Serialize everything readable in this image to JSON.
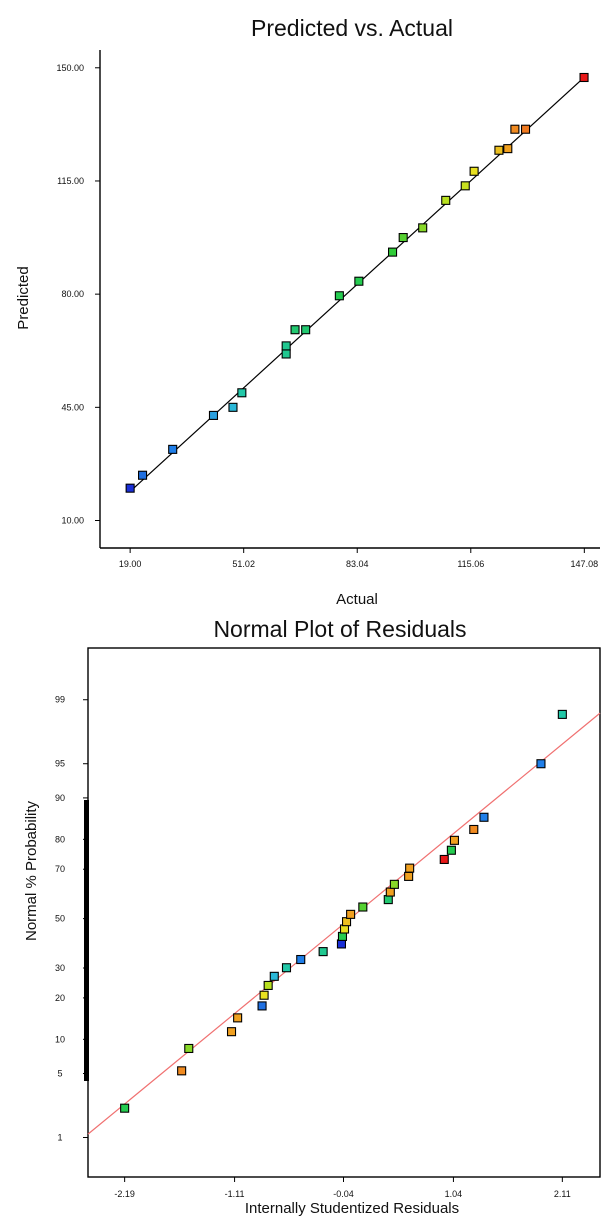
{
  "chart_data": [
    {
      "type": "scatter",
      "title": "Predicted vs. Actual",
      "xlabel": "Actual",
      "ylabel": "Predicted",
      "xlim": [
        10.5,
        151.5
      ],
      "ylim": [
        1.5,
        155.5
      ],
      "x_ticks": [
        19.0,
        51.02,
        83.04,
        115.06,
        147.08
      ],
      "x_tick_labels": [
        "19.00",
        "51.02",
        "83.04",
        "115.06",
        "147.08"
      ],
      "y_ticks": [
        10.0,
        45.0,
        80.0,
        115.0,
        150.0
      ],
      "y_tick_labels": [
        "10.00",
        "45.00",
        "80.00",
        "115.00",
        "150.00"
      ],
      "fit_line": [
        [
          19.0,
          19.0
        ],
        [
          147.0,
          147.0
        ]
      ],
      "points": [
        {
          "x": 19.0,
          "y": 20.0,
          "color": "#1a2fd6"
        },
        {
          "x": 22.5,
          "y": 24.0,
          "color": "#1f6fe0"
        },
        {
          "x": 31.0,
          "y": 32.0,
          "color": "#1f7ee8"
        },
        {
          "x": 42.5,
          "y": 42.5,
          "color": "#2aa0e0"
        },
        {
          "x": 48.0,
          "y": 45.0,
          "color": "#2ab8d8"
        },
        {
          "x": 50.5,
          "y": 49.5,
          "color": "#22c8a8"
        },
        {
          "x": 63.0,
          "y": 61.5,
          "color": "#20c890"
        },
        {
          "x": 63.0,
          "y": 64.0,
          "color": "#20c890"
        },
        {
          "x": 65.5,
          "y": 69.0,
          "color": "#22c870"
        },
        {
          "x": 68.5,
          "y": 69.0,
          "color": "#22c870"
        },
        {
          "x": 78.0,
          "y": 79.5,
          "color": "#25cc50"
        },
        {
          "x": 83.5,
          "y": 84.0,
          "color": "#25cc50"
        },
        {
          "x": 93.0,
          "y": 93.0,
          "color": "#30cc38"
        },
        {
          "x": 96.0,
          "y": 97.5,
          "color": "#55d030"
        },
        {
          "x": 101.5,
          "y": 100.5,
          "color": "#88d828"
        },
        {
          "x": 108.0,
          "y": 109.0,
          "color": "#b8e020"
        },
        {
          "x": 113.5,
          "y": 113.5,
          "color": "#c8e020"
        },
        {
          "x": 116.0,
          "y": 118.0,
          "color": "#e8e020"
        },
        {
          "x": 123.0,
          "y": 124.5,
          "color": "#ecc020"
        },
        {
          "x": 125.5,
          "y": 125.0,
          "color": "#f0a020"
        },
        {
          "x": 127.5,
          "y": 131.0,
          "color": "#f08a20"
        },
        {
          "x": 130.5,
          "y": 131.0,
          "color": "#f07a20"
        },
        {
          "x": 147.0,
          "y": 147.0,
          "color": "#e81818"
        }
      ]
    },
    {
      "type": "scatter",
      "title": "Normal Plot of Residuals",
      "xlabel": "Internally Studentized Residuals",
      "ylabel": "Normal % Probability",
      "xlim": [
        -2.55,
        2.48
      ],
      "ylim_percent": [
        0.3,
        99.8
      ],
      "x_ticks": [
        -2.19,
        -1.11,
        -0.04,
        1.04,
        2.11
      ],
      "x_tick_labels": [
        "-2.19",
        "-1.11",
        "-0.04",
        "1.04",
        "2.11"
      ],
      "y_ticks": [
        1,
        5,
        10,
        20,
        30,
        50,
        70,
        80,
        90,
        95,
        99
      ],
      "y_tick_labels": [
        "1",
        "5",
        "10",
        "20",
        "30",
        "50",
        "70",
        "80",
        "90",
        "95",
        "99"
      ],
      "fit_line": [
        [
          -2.55,
          1.1
        ],
        [
          2.48,
          98.55
        ]
      ],
      "points": [
        {
          "x": -2.19,
          "p": 2.2,
          "color": "#25cc50"
        },
        {
          "x": -1.63,
          "p": 5.3,
          "color": "#f08a20"
        },
        {
          "x": -1.56,
          "p": 8.4,
          "color": "#88d828"
        },
        {
          "x": -1.14,
          "p": 11.5,
          "color": "#f0a020"
        },
        {
          "x": -1.08,
          "p": 14.6,
          "color": "#f0a020"
        },
        {
          "x": -0.84,
          "p": 17.7,
          "color": "#1f6fe0"
        },
        {
          "x": -0.82,
          "p": 20.8,
          "color": "#e8e020"
        },
        {
          "x": -0.78,
          "p": 23.9,
          "color": "#b8e020"
        },
        {
          "x": -0.72,
          "p": 27.0,
          "color": "#2ab8d8"
        },
        {
          "x": -0.6,
          "p": 30.1,
          "color": "#22c8a8"
        },
        {
          "x": -0.46,
          "p": 33.2,
          "color": "#1f7ee8"
        },
        {
          "x": -0.24,
          "p": 36.3,
          "color": "#20c890"
        },
        {
          "x": -0.06,
          "p": 39.4,
          "color": "#1a2fd6"
        },
        {
          "x": -0.05,
          "p": 42.5,
          "color": "#25cc50"
        },
        {
          "x": -0.03,
          "p": 45.6,
          "color": "#e8e020"
        },
        {
          "x": -0.01,
          "p": 48.7,
          "color": "#ecc020"
        },
        {
          "x": 0.03,
          "p": 51.8,
          "color": "#f0a020"
        },
        {
          "x": 0.15,
          "p": 54.9,
          "color": "#55d030"
        },
        {
          "x": 0.4,
          "p": 58.0,
          "color": "#22c870"
        },
        {
          "x": 0.42,
          "p": 61.1,
          "color": "#f0a020"
        },
        {
          "x": 0.46,
          "p": 64.2,
          "color": "#88d828"
        },
        {
          "x": 0.6,
          "p": 67.3,
          "color": "#f0a020"
        },
        {
          "x": 0.61,
          "p": 70.4,
          "color": "#f0a020"
        },
        {
          "x": 0.95,
          "p": 73.5,
          "color": "#e81818"
        },
        {
          "x": 1.02,
          "p": 76.6,
          "color": "#25cc50"
        },
        {
          "x": 1.05,
          "p": 79.7,
          "color": "#f0a020"
        },
        {
          "x": 1.24,
          "p": 82.8,
          "color": "#f08a20"
        },
        {
          "x": 1.34,
          "p": 85.9,
          "color": "#1f7ee8"
        },
        {
          "x": 1.9,
          "p": 95.0,
          "color": "#1f7ee8"
        },
        {
          "x": 2.11,
          "p": 98.5,
          "color": "#22c8a8"
        }
      ]
    }
  ]
}
